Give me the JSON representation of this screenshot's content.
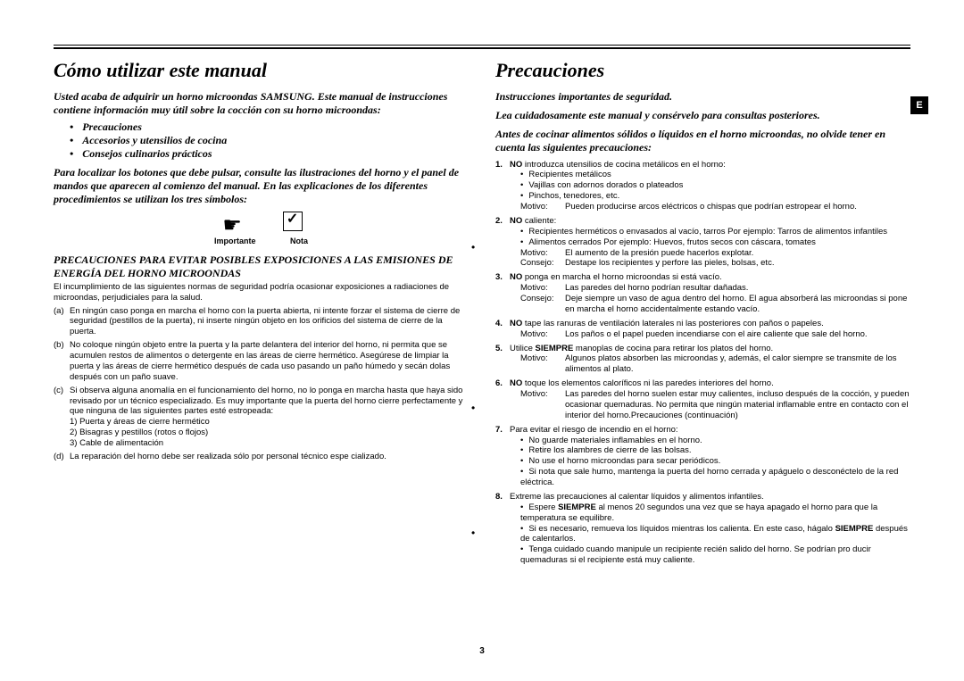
{
  "page_number": "3",
  "side_tab": "E",
  "left": {
    "title": "Cómo utilizar este manual",
    "intro": "Usted acaba de adquirir un horno microondas SAMSUNG. Este manual de instrucciones contiene información muy útil sobre la cocción con su horno microondas:",
    "bullets": [
      "Precauciones",
      "Accesorios y utensilios de cocina",
      "Consejos culinarios prácticos"
    ],
    "para2": "Para localizar los botones que debe pulsar, consulte las ilustraciones del horno y el panel de mandos que aparecen al comienzo del manual. En las explicaciones de los diferentes procedimientos se utilizan los tres símbolos:",
    "icon_labels": {
      "important": "Importante",
      "note": "Nota"
    },
    "caps_heading": "PRECAUCIONES PARA EVITAR POSIBLES EXPOSICIONES A LAS EMISIONES DE ENERGÍA DEL HORNO MICROONDAS",
    "compliance": "El incumplimiento de las siguientes normas de seguridad podría ocasionar exposiciones a radiaciones de microondas, perjudiciales para la salud.",
    "items": [
      {
        "l": "(a)",
        "t": "En ningún caso ponga en marcha el horno con la puerta abierta, ni intente forzar el sistema de cierre de seguridad (pestillos de la puerta), ni inserte ningún objeto en los orificios del sistema de cierre de la puerta."
      },
      {
        "l": "(b)",
        "t": "No coloque ningún objeto entre la puerta y la parte delantera del interior del horno, ni permita que se acumulen restos de alimentos o detergente en las áreas de cierre hermético. Asegúrese de limpiar la puerta y las áreas de cierre hermético después de cada uso pasando un paño húmedo y secán dolas después con un paño suave."
      },
      {
        "l": "(c)",
        "t": "Si observa alguna anomalía en el funcionamiento del horno, no lo ponga en marcha hasta que haya sido revisado por un técnico especializado. Es muy importante que la puerta del horno cierre perfectamente y que ninguna de las siguientes partes esté estropeada:"
      },
      {
        "l": "(d)",
        "t": "La reparación del horno debe ser realizada sólo por personal técnico espe cializado."
      }
    ],
    "sub_c": [
      "1) Puerta y áreas de cierre hermético",
      "2) Bisagras y pestillos (rotos o flojos)",
      "3) Cable de alimentación"
    ]
  },
  "right": {
    "title": "Precauciones",
    "h1": "Instrucciones importantes de seguridad.",
    "h2": "Lea cuidadosamente este manual y consérvelo para consultas posteriores.",
    "h3": "Antes de cocinar alimentos sólidos o líquidos en el horno microondas, no olvide tener en cuenta las siguientes precauciones:",
    "items": [
      {
        "n": "1.",
        "lead": "<b>NO</b> introduzca utensilios de cocina metálicos en el horno:",
        "bullets": [
          "Recipientes metálicos",
          "Vajillas con adornos dorados o plateados",
          "Pinchos, tenedores, etc."
        ],
        "kv": [
          {
            "k": "Motivo:",
            "v": "Pueden producirse arcos eléctricos o chispas que podrían estropear el horno."
          }
        ]
      },
      {
        "n": "2.",
        "lead": "<b>NO</b> caliente:",
        "bullets": [
          "Recipientes herméticos o envasados al vacío, tarros Por ejemplo: Tarros de alimentos infantiles",
          "Alimentos cerrados Por ejemplo: Huevos, frutos secos con cáscara, tomates"
        ],
        "kv": [
          {
            "k": "Motivo:",
            "v": "El aumento de la presión puede hacerlos explotar."
          },
          {
            "k": "Consejo:",
            "v": "Destape los recipientes y perfore las pieles, bolsas, etc."
          }
        ]
      },
      {
        "n": "3.",
        "lead": "<b>NO</b> ponga en marcha el horno microondas si está vacío.",
        "kv": [
          {
            "k": "Motivo:",
            "v": "Las paredes del horno podrían resultar dañadas."
          },
          {
            "k": "Consejo:",
            "v": "Deje siempre un vaso de agua dentro del horno. El agua absorberá las microondas si pone en marcha el horno accidentalmente estando vacío."
          }
        ]
      },
      {
        "n": "4.",
        "lead": "<b>NO</b> tape las ranuras de ventilación laterales ni las posteriores con paños o papeles.",
        "kv": [
          {
            "k": "Motivo:",
            "v": "Los paños o el papel pueden incendiarse con el aire caliente que sale del horno."
          }
        ]
      },
      {
        "n": "5.",
        "lead": "Utilice <b>SIEMPRE</b> manoplas de cocina para retirar los platos del horno.",
        "kv": [
          {
            "k": "Motivo:",
            "v": "Algunos platos absorben las microondas y, además, el calor siempre se transmite de los alimentos al plato."
          }
        ]
      },
      {
        "n": "6.",
        "lead": "<b>NO</b> toque los elementos caloríficos ni las paredes interiores del horno.",
        "kv": [
          {
            "k": "Motivo:",
            "v": "Las paredes del horno suelen estar muy calientes, incluso después de la cocción, y pueden ocasionar quemaduras. No permita que ningún material inflamable entre en contacto con el interior del horno.Precauciones (continuación)"
          }
        ]
      },
      {
        "n": "7.",
        "lead": "Para evitar el riesgo de incendio en el horno:",
        "bullets": [
          "No guarde materiales inflamables en el horno.",
          "Retire los alambres de cierre de las bolsas.",
          "No use el horno microondas para secar periódicos.",
          "Si nota que sale humo, mantenga la puerta del horno cerrada y apáguelo o desconéctelo de la red eléctrica."
        ]
      },
      {
        "n": "8.",
        "lead": "Extreme las precauciones al calentar líquidos y alimentos infantiles.",
        "bullets": [
          "Espere <b>SIEMPRE</b> al menos 20 segundos una vez que se haya apagado el horno para que la temperatura se equilibre.",
          "Si es necesario, remueva los líquidos mientras los calienta. En este caso, hágalo <b>SIEMPRE</b> después de calentarlos.",
          "Tenga cuidado cuando manipule un recipiente recién salido del horno. Se podrían pro ducir quemaduras si el recipiente está muy caliente."
        ]
      }
    ]
  }
}
